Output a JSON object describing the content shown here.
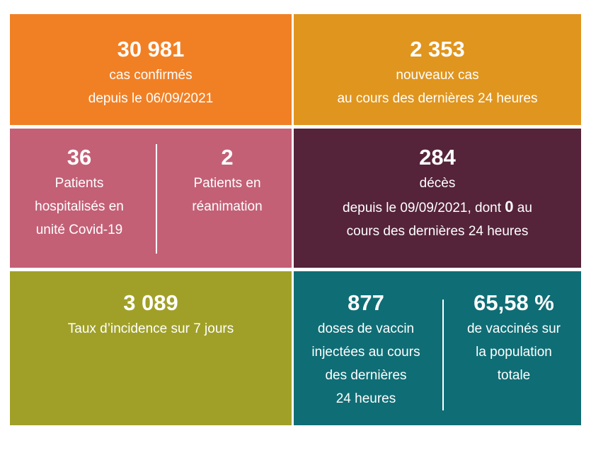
{
  "tiles": {
    "confirmed": {
      "value": "30 981",
      "line1": "cas confirmés",
      "line2": "depuis le 06/09/2021",
      "color": "#f18025"
    },
    "new_cases": {
      "value": "2 353",
      "line1": "nouveaux cas",
      "line2": "au cours des dernières 24 heures",
      "color": "#e0951e"
    },
    "hospital": {
      "color": "#c36076",
      "hospitalised": {
        "value": "36",
        "lines": [
          "Patients",
          "hospitalisés en",
          "unité Covid-19"
        ]
      },
      "icu": {
        "value": "2",
        "lines": [
          "Patients en",
          "réanimation"
        ]
      }
    },
    "deaths": {
      "value": "284",
      "line1": "décès",
      "line2_before": "depuis le 09/09/2021, dont ",
      "line2_bold": "0",
      "line2_after": " au",
      "line3": "cours des dernières 24 heures",
      "color": "#55233a"
    },
    "incidence": {
      "value": "3 089",
      "line1": "Taux d’incidence sur 7 jours",
      "color": "#a0a029"
    },
    "vaccination": {
      "color": "#0f6d75",
      "doses": {
        "value": "877",
        "lines": [
          "doses de vaccin",
          "injectées au cours",
          "des dernières",
          "24 heures"
        ]
      },
      "rate": {
        "value": "65,58 %",
        "lines": [
          "de vaccinés sur",
          "la population",
          "totale"
        ]
      }
    }
  }
}
